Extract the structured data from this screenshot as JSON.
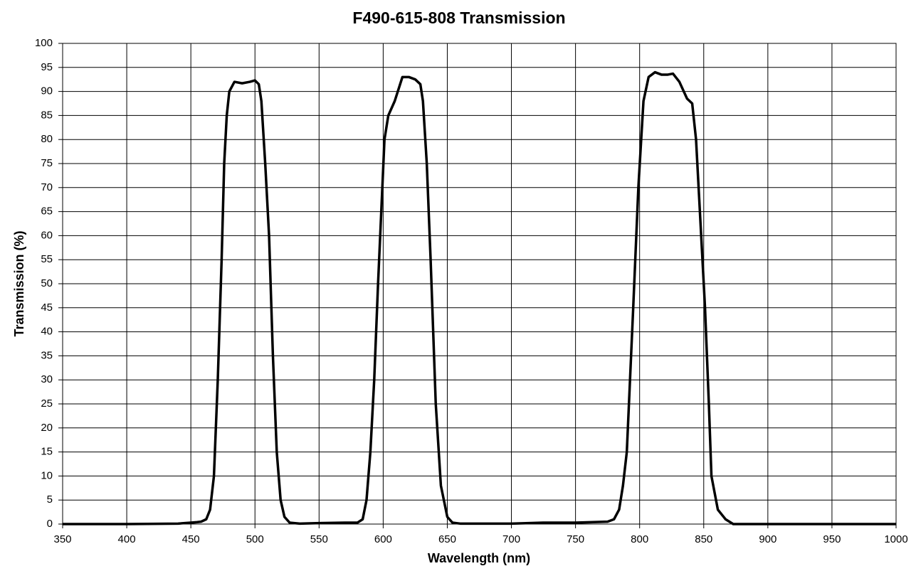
{
  "chart_data": {
    "type": "line",
    "title": "F490-615-808 Transmission",
    "xlabel": "Wavelength (nm)",
    "ylabel": "Transmission (%)",
    "x": [
      350,
      400,
      440,
      450,
      455,
      458,
      462,
      465,
      468,
      471,
      474,
      476,
      478,
      480,
      484,
      490,
      496,
      500,
      503,
      505,
      508,
      511,
      514,
      517,
      520,
      523,
      527,
      535,
      550,
      570,
      580,
      584,
      587,
      590,
      593,
      596,
      598,
      601,
      604,
      609,
      615,
      620,
      625,
      629,
      631,
      634,
      637,
      641,
      645,
      650,
      654,
      660,
      700,
      725,
      750,
      775,
      780,
      784,
      787,
      790,
      795,
      799,
      803,
      807,
      812,
      817,
      822,
      826,
      831,
      837,
      841,
      844,
      847,
      851,
      854,
      856,
      861,
      867,
      873,
      900,
      1000
    ],
    "series": [
      {
        "name": "Transmission",
        "color": "#000000",
        "values": [
          0,
          0,
          0.1,
          0.3,
          0.4,
          0.5,
          1,
          3,
          10,
          30,
          55,
          75,
          85,
          90,
          92,
          91.7,
          92,
          92.3,
          91.5,
          88,
          75,
          60,
          35,
          15,
          5,
          1.5,
          0.3,
          0.1,
          0.2,
          0.3,
          0.3,
          1,
          5,
          15,
          30,
          50,
          62,
          80,
          85,
          88,
          93,
          93,
          92.5,
          91.5,
          88,
          75,
          55,
          25,
          8,
          1.5,
          0.3,
          0.1,
          0.1,
          0.3,
          0.3,
          0.5,
          1,
          3,
          8,
          15,
          45,
          70,
          88,
          93,
          94,
          93.5,
          93.5,
          93.7,
          92,
          88.5,
          87.5,
          80,
          65,
          45,
          25,
          10,
          3,
          1,
          0,
          0,
          0
        ]
      }
    ],
    "xlim": [
      350,
      1000
    ],
    "ylim": [
      0,
      100
    ],
    "xticks": [
      350,
      400,
      450,
      500,
      550,
      600,
      650,
      700,
      750,
      800,
      850,
      900,
      950,
      1000
    ],
    "yticks": [
      0,
      5,
      10,
      15,
      20,
      25,
      30,
      35,
      40,
      45,
      50,
      55,
      60,
      65,
      70,
      75,
      80,
      85,
      90,
      95,
      100
    ],
    "grid": true
  }
}
